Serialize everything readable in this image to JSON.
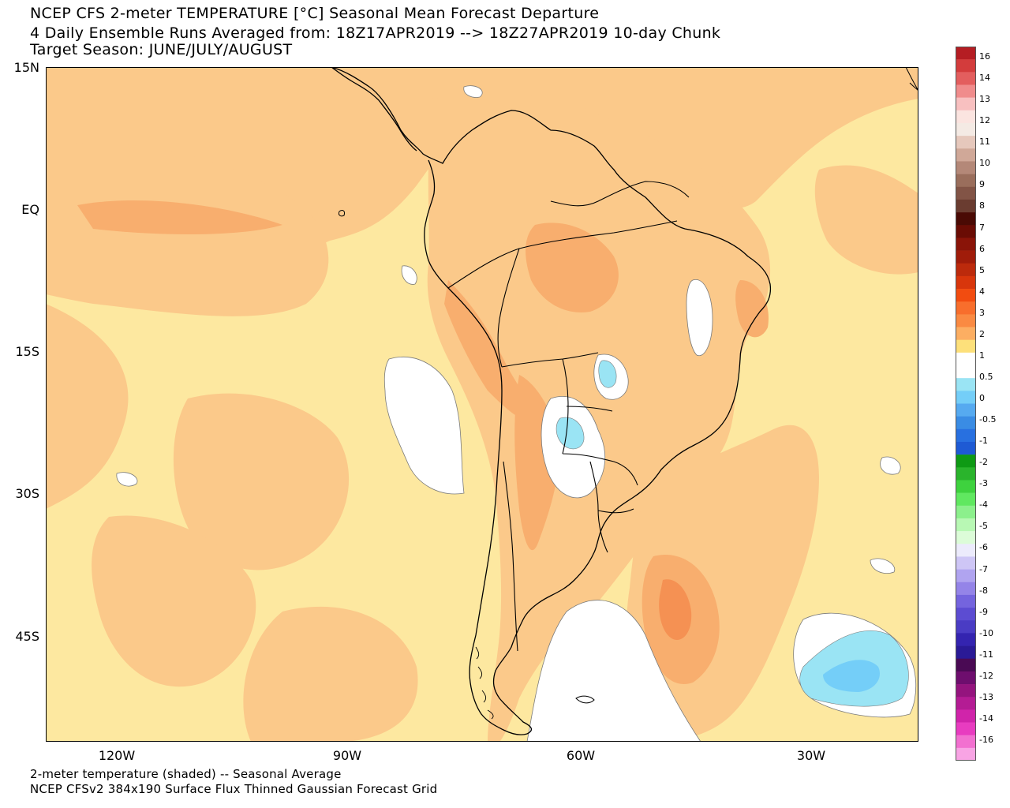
{
  "header": {
    "line1": "NCEP CFS 2-meter TEMPERATURE [°C] Seasonal Mean Forecast Departure",
    "line2": "4 Daily Ensemble Runs Averaged from: 18Z17APR2019 --> 18Z27APR2019 10-day Chunk",
    "line3": "Target Season: JUNE/JULY/AUGUST"
  },
  "footer": {
    "line1": "2-meter temperature (shaded) -- Seasonal Average",
    "line2": "NCEP CFSv2 384x190 Surface Flux Thinned Gaussian Forecast Grid"
  },
  "axes": {
    "lat_labels": [
      "15N",
      "EQ",
      "15S",
      "30S",
      "45S"
    ],
    "lon_labels": [
      "120W",
      "90W",
      "60W",
      "30W"
    ]
  },
  "colorbar": {
    "labels": [
      "16",
      "14",
      "13",
      "12",
      "11",
      "10",
      "9",
      "8",
      "7",
      "6",
      "5",
      "4",
      "3",
      "2",
      "1",
      "0.5",
      "0",
      "-0.5",
      "-1",
      "-2",
      "-3",
      "-4",
      "-5",
      "-6",
      "-7",
      "-8",
      "-9",
      "-10",
      "-11",
      "-12",
      "-13",
      "-14",
      "-16"
    ],
    "colors": [
      "#b51d23",
      "#d33c3c",
      "#e35e5e",
      "#f08c8c",
      "#f8c0c0",
      "#fbe4e0",
      "#f4eae4",
      "#e6c8bc",
      "#d0a898",
      "#b48878",
      "#9a6e5c",
      "#825446",
      "#6a3c30",
      "#4a0a04",
      "#6a0c04",
      "#8a1408",
      "#a01c0a",
      "#bc2a0c",
      "#d8360c",
      "#f24c10",
      "#f86e2c",
      "#fa8a42",
      "#fcae62",
      "#fde07a",
      "#ffffff",
      "#ffffff",
      "#9ae4f4",
      "#74cef8",
      "#56aaf0",
      "#3a8ce4",
      "#2870e0",
      "#1e5ad4",
      "#0e9a14",
      "#2ab42c",
      "#3ed23e",
      "#60e860",
      "#8cf08c",
      "#b8f8b4",
      "#dcfcd8",
      "#ecebfc",
      "#cec6f6",
      "#b0a4f0",
      "#9484e8",
      "#7464de",
      "#5c4cd2",
      "#4a3cc4",
      "#3424b0",
      "#2a1a96",
      "#4a0a54",
      "#6e0e6e",
      "#94147e",
      "#b41c94",
      "#d024aa",
      "#e83cc0",
      "#f270d0",
      "#f8a4e4"
    ]
  },
  "regions": {
    "area_name": "South America and surrounding oceans"
  }
}
